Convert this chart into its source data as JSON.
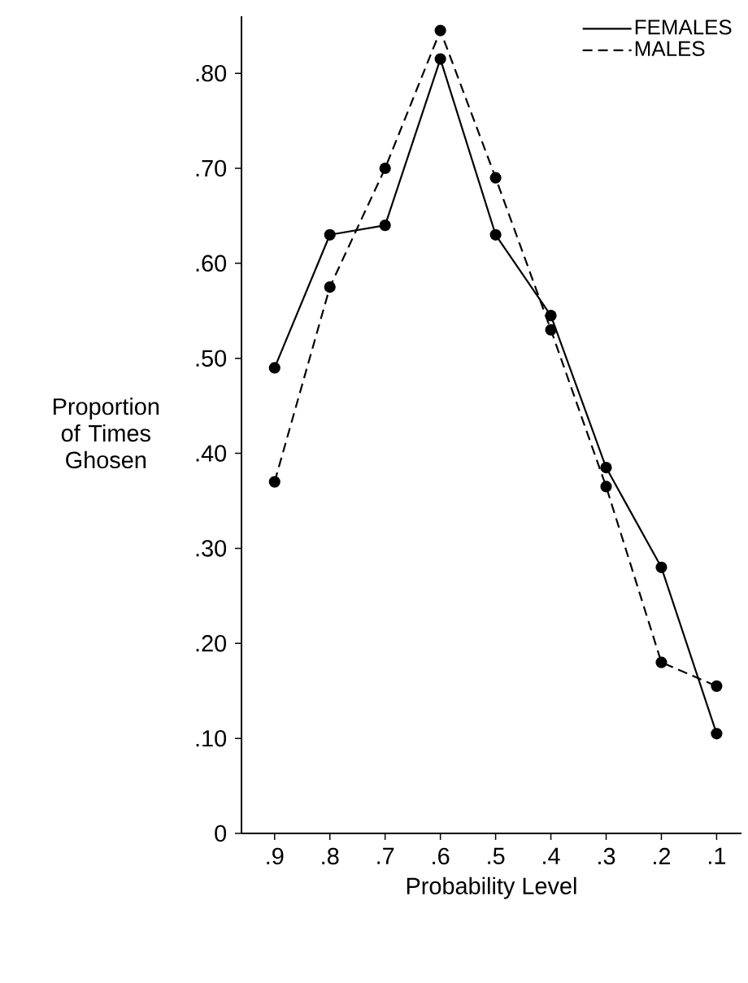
{
  "chart_data": {
    "type": "line",
    "xlabel": "Probability Level",
    "ylabel": "Proportion of Times Ghosen",
    "categories": [
      ".9",
      ".8",
      ".7",
      ".6",
      ".5",
      ".4",
      ".3",
      ".2",
      ".1"
    ],
    "series": [
      {
        "name": "FEMALES",
        "color": "#000000",
        "line_style": "solid",
        "values": [
          0.49,
          0.63,
          0.64,
          0.815,
          0.63,
          0.545,
          0.385,
          0.28,
          0.105
        ]
      },
      {
        "name": "MALES",
        "color": "#000000",
        "line_style": "dashed",
        "values": [
          0.37,
          0.575,
          0.7,
          0.845,
          0.69,
          0.53,
          0.365,
          0.18,
          0.155
        ]
      }
    ],
    "ylim": [
      0,
      0.86
    ],
    "yticks": [
      0,
      {
        "value": 0.1,
        "label": ".10"
      },
      {
        "value": 0.2,
        "label": ".20"
      },
      {
        "value": 0.3,
        "label": ".30"
      },
      {
        "value": 0.4,
        "label": ".40"
      },
      {
        "value": 0.5,
        "label": ".50"
      },
      {
        "value": 0.6,
        "label": ".60"
      },
      {
        "value": 0.7,
        "label": ".70"
      },
      {
        "value": 0.8,
        "label": ".80"
      }
    ],
    "marker": "circle",
    "legend": "top right",
    "grid": false
  }
}
